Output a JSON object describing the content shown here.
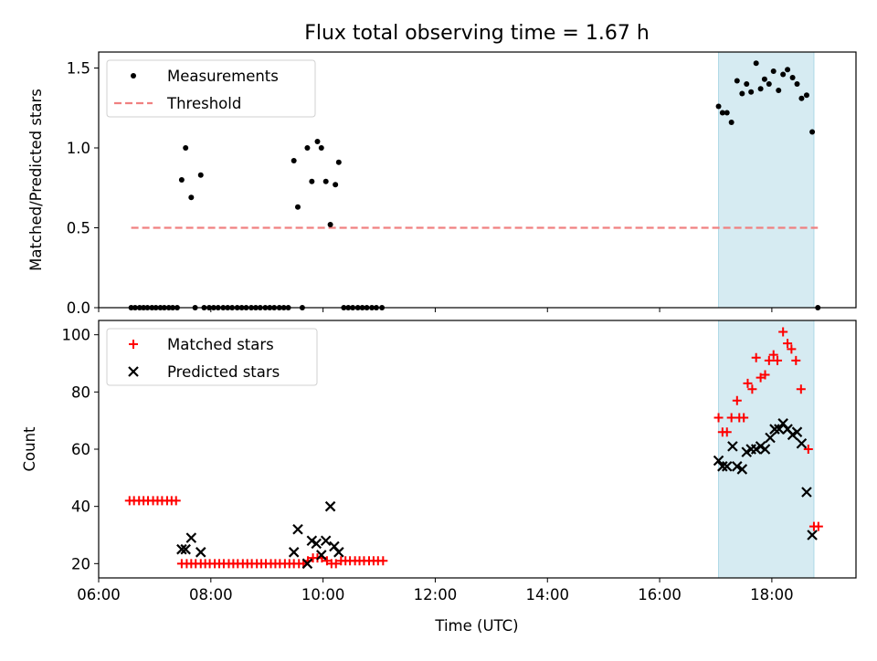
{
  "figure_title": "Flux total observing time = 1.67 h",
  "colors": {
    "measurement": "#000000",
    "threshold": "#f08080",
    "matched": "#ff0000",
    "predicted": "#000000",
    "highlight": "#add8e6"
  },
  "chart_data": [
    {
      "type": "scatter",
      "ylabel": "Matched/Predicted stars",
      "xlim": [
        6.0,
        19.5
      ],
      "ylim": [
        0,
        1.6
      ],
      "y_ticks": [
        "0.0",
        "0.5",
        "1.0",
        "1.5"
      ],
      "legend": {
        "placement": "top-left",
        "entries": [
          "Measurements",
          "Threshold"
        ]
      },
      "highlight_span": {
        "from": 17.05,
        "to": 18.75
      },
      "threshold": {
        "value": 0.5,
        "x_from": 6.58,
        "x_to": 18.82
      },
      "series": [
        {
          "name": "Measurements",
          "points": [
            [
              6.58,
              0
            ],
            [
              6.65,
              0
            ],
            [
              6.73,
              0
            ],
            [
              6.8,
              0
            ],
            [
              6.87,
              0
            ],
            [
              6.95,
              0
            ],
            [
              7.02,
              0
            ],
            [
              7.1,
              0
            ],
            [
              7.17,
              0
            ],
            [
              7.25,
              0
            ],
            [
              7.32,
              0
            ],
            [
              7.4,
              0
            ],
            [
              7.48,
              0.8
            ],
            [
              7.55,
              1.0
            ],
            [
              7.65,
              0.69
            ],
            [
              7.72,
              0
            ],
            [
              7.82,
              0.83
            ],
            [
              7.88,
              0
            ],
            [
              7.97,
              0
            ],
            [
              8.05,
              0
            ],
            [
              8.13,
              0
            ],
            [
              8.22,
              0
            ],
            [
              8.3,
              0
            ],
            [
              8.38,
              0
            ],
            [
              8.47,
              0
            ],
            [
              8.55,
              0
            ],
            [
              8.63,
              0
            ],
            [
              8.72,
              0
            ],
            [
              8.8,
              0
            ],
            [
              8.88,
              0
            ],
            [
              8.97,
              0
            ],
            [
              9.05,
              0
            ],
            [
              9.13,
              0
            ],
            [
              9.22,
              0
            ],
            [
              9.3,
              0
            ],
            [
              9.38,
              0
            ],
            [
              9.48,
              0.92
            ],
            [
              9.55,
              0.63
            ],
            [
              9.63,
              0
            ],
            [
              9.72,
              1.0
            ],
            [
              9.8,
              0.79
            ],
            [
              9.9,
              1.04
            ],
            [
              9.97,
              1.0
            ],
            [
              10.05,
              0.79
            ],
            [
              10.13,
              0.52
            ],
            [
              10.22,
              0.77
            ],
            [
              10.28,
              0.91
            ],
            [
              10.37,
              0
            ],
            [
              10.45,
              0
            ],
            [
              10.53,
              0
            ],
            [
              10.62,
              0
            ],
            [
              10.7,
              0
            ],
            [
              10.78,
              0
            ],
            [
              10.87,
              0
            ],
            [
              10.95,
              0
            ],
            [
              11.05,
              0
            ],
            [
              17.05,
              1.26
            ],
            [
              17.12,
              1.22
            ],
            [
              17.2,
              1.22
            ],
            [
              17.28,
              1.16
            ],
            [
              17.38,
              1.42
            ],
            [
              17.47,
              1.34
            ],
            [
              17.55,
              1.4
            ],
            [
              17.63,
              1.35
            ],
            [
              17.72,
              1.53
            ],
            [
              17.8,
              1.37
            ],
            [
              17.87,
              1.43
            ],
            [
              17.95,
              1.4
            ],
            [
              18.03,
              1.48
            ],
            [
              18.12,
              1.36
            ],
            [
              18.2,
              1.46
            ],
            [
              18.28,
              1.49
            ],
            [
              18.37,
              1.44
            ],
            [
              18.45,
              1.4
            ],
            [
              18.53,
              1.31
            ],
            [
              18.62,
              1.33
            ],
            [
              18.72,
              1.1
            ],
            [
              18.82,
              0
            ]
          ]
        }
      ]
    },
    {
      "type": "scatter",
      "xlabel": "Time (UTC)",
      "ylabel": "Count",
      "xlim": [
        6.0,
        19.5
      ],
      "ylim": [
        15,
        105
      ],
      "x_ticks": [
        "06:00",
        "08:00",
        "10:00",
        "12:00",
        "14:00",
        "16:00",
        "18:00"
      ],
      "y_ticks": [
        "20",
        "40",
        "60",
        "80",
        "100"
      ],
      "legend": {
        "placement": "top-left",
        "entries": [
          "Matched stars",
          "Predicted stars"
        ]
      },
      "highlight_span": {
        "from": 17.05,
        "to": 18.75
      },
      "series": [
        {
          "name": "Matched stars",
          "points": [
            [
              6.55,
              42
            ],
            [
              6.63,
              42
            ],
            [
              6.72,
              42
            ],
            [
              6.8,
              42
            ],
            [
              6.88,
              42
            ],
            [
              6.97,
              42
            ],
            [
              7.05,
              42
            ],
            [
              7.13,
              42
            ],
            [
              7.22,
              42
            ],
            [
              7.3,
              42
            ],
            [
              7.38,
              42
            ],
            [
              7.48,
              20
            ],
            [
              7.57,
              20
            ],
            [
              7.65,
              20
            ],
            [
              7.73,
              20
            ],
            [
              7.82,
              20
            ],
            [
              7.9,
              20
            ],
            [
              7.98,
              20
            ],
            [
              8.07,
              20
            ],
            [
              8.15,
              20
            ],
            [
              8.23,
              20
            ],
            [
              8.32,
              20
            ],
            [
              8.4,
              20
            ],
            [
              8.48,
              20
            ],
            [
              8.57,
              20
            ],
            [
              8.65,
              20
            ],
            [
              8.73,
              20
            ],
            [
              8.82,
              20
            ],
            [
              8.9,
              20
            ],
            [
              8.98,
              20
            ],
            [
              9.07,
              20
            ],
            [
              9.15,
              20
            ],
            [
              9.23,
              20
            ],
            [
              9.32,
              20
            ],
            [
              9.4,
              20
            ],
            [
              9.48,
              20
            ],
            [
              9.57,
              20
            ],
            [
              9.65,
              20
            ],
            [
              9.73,
              21
            ],
            [
              9.82,
              22
            ],
            [
              9.9,
              22
            ],
            [
              9.98,
              22
            ],
            [
              10.07,
              21
            ],
            [
              10.15,
              20
            ],
            [
              10.23,
              20
            ],
            [
              10.32,
              21
            ],
            [
              10.4,
              21
            ],
            [
              10.48,
              21
            ],
            [
              10.57,
              21
            ],
            [
              10.65,
              21
            ],
            [
              10.73,
              21
            ],
            [
              10.82,
              21
            ],
            [
              10.9,
              21
            ],
            [
              10.98,
              21
            ],
            [
              11.07,
              21
            ],
            [
              17.05,
              71
            ],
            [
              17.12,
              66
            ],
            [
              17.2,
              66
            ],
            [
              17.28,
              71
            ],
            [
              17.38,
              77
            ],
            [
              17.42,
              71
            ],
            [
              17.5,
              71
            ],
            [
              17.57,
              83
            ],
            [
              17.65,
              81
            ],
            [
              17.72,
              92
            ],
            [
              17.8,
              85
            ],
            [
              17.88,
              86
            ],
            [
              17.95,
              91
            ],
            [
              18.03,
              93
            ],
            [
              18.1,
              91
            ],
            [
              18.2,
              101
            ],
            [
              18.28,
              97
            ],
            [
              18.35,
              95
            ],
            [
              18.43,
              91
            ],
            [
              18.52,
              81
            ],
            [
              18.65,
              60
            ],
            [
              18.75,
              33
            ],
            [
              18.83,
              33
            ]
          ]
        },
        {
          "name": "Predicted stars",
          "points": [
            [
              7.48,
              25
            ],
            [
              7.55,
              25
            ],
            [
              7.65,
              29
            ],
            [
              7.82,
              24
            ],
            [
              9.48,
              24
            ],
            [
              9.55,
              32
            ],
            [
              9.72,
              20
            ],
            [
              9.8,
              28
            ],
            [
              9.88,
              27
            ],
            [
              9.97,
              23
            ],
            [
              10.05,
              28
            ],
            [
              10.13,
              40
            ],
            [
              10.2,
              26
            ],
            [
              10.28,
              24
            ],
            [
              17.05,
              56
            ],
            [
              17.12,
              54
            ],
            [
              17.2,
              54
            ],
            [
              17.3,
              61
            ],
            [
              17.38,
              54
            ],
            [
              17.47,
              53
            ],
            [
              17.55,
              59
            ],
            [
              17.63,
              60
            ],
            [
              17.72,
              60
            ],
            [
              17.8,
              61
            ],
            [
              17.88,
              60
            ],
            [
              17.97,
              64
            ],
            [
              18.05,
              67
            ],
            [
              18.13,
              67
            ],
            [
              18.2,
              69
            ],
            [
              18.28,
              67
            ],
            [
              18.37,
              65
            ],
            [
              18.45,
              66
            ],
            [
              18.53,
              62
            ],
            [
              18.62,
              45
            ],
            [
              18.72,
              30
            ]
          ]
        }
      ]
    }
  ]
}
